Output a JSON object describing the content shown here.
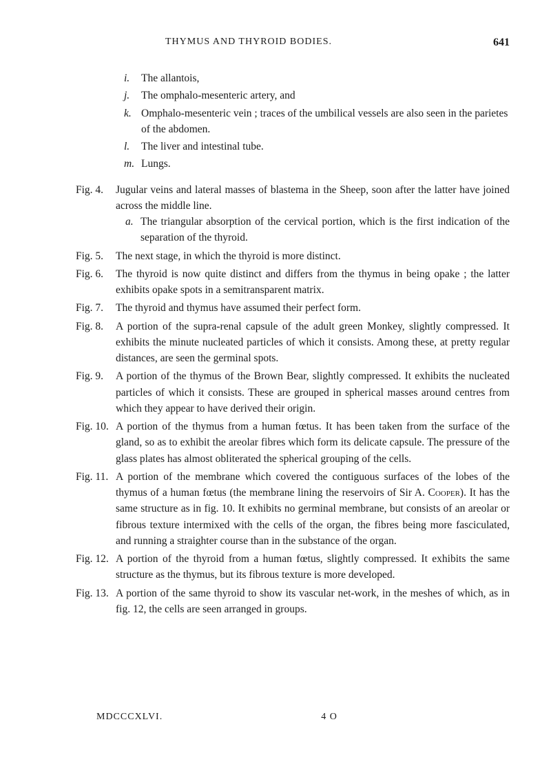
{
  "header": {
    "title": "THYMUS AND THYROID BODIES.",
    "pageNumber": "641"
  },
  "subList": [
    {
      "label": "i.",
      "text": "The allantois,"
    },
    {
      "label": "j.",
      "text": "The omphalo-mesenteric artery, and"
    },
    {
      "label": "k.",
      "text": "Omphalo-mesenteric vein ; traces of the umbilical vessels are also seen in the parietes of the abdomen."
    },
    {
      "label": "l.",
      "text": "The liver and intestinal tube."
    },
    {
      "label": "m.",
      "text": "Lungs."
    }
  ],
  "figs": {
    "fig4": {
      "label": "Fig. 4.",
      "text": "Jugular veins and lateral masses of blastema in the Sheep, soon after the latter have joined across the middle line.",
      "sub": {
        "label": "a.",
        "text": "The triangular absorption of the cervical portion, which is the first indication of the separation of the thyroid."
      }
    },
    "fig5": {
      "label": "Fig. 5.",
      "text": "The next stage, in which the thyroid is more distinct."
    },
    "fig6": {
      "label": "Fig. 6.",
      "text": "The thyroid is now quite distinct and differs from the thymus in being opake ; the latter exhibits opake spots in a semitransparent matrix."
    },
    "fig7": {
      "label": "Fig. 7.",
      "text": "The thyroid and thymus have assumed their perfect form."
    },
    "fig8": {
      "label": "Fig. 8.",
      "text": "A portion of the supra-renal capsule of the adult green Monkey, slightly compressed. It exhibits the minute nucleated particles of which it consists. Among these, at pretty regular distances, are seen the germinal spots."
    },
    "fig9": {
      "label": "Fig. 9.",
      "text": "A portion of the thymus of the Brown Bear, slightly compressed. It exhibits the nucleated particles of which it consists. These are grouped in spherical masses around centres from which they appear to have derived their origin."
    },
    "fig10": {
      "label": "Fig. 10.",
      "text": "A portion of the thymus from a human fœtus. It has been taken from the surface of the gland, so as to exhibit the areolar fibres which form its delicate capsule. The pressure of the glass plates has almost obliterated the spherical grouping of the cells."
    },
    "fig11": {
      "label": "Fig. 11.",
      "textPre": "A portion of the membrane which covered the contiguous surfaces of the lobes of the thymus of a human fœtus (the membrane lining the reservoirs of Sir A. ",
      "cooper": "Cooper",
      "textPost": "). It has the same structure as in fig. 10. It exhibits no germinal membrane, but consists of an areolar or fibrous texture intermixed with the cells of the organ, the fibres being more fasciculated, and running a straighter course than in the substance of the organ."
    },
    "fig12": {
      "label": "Fig. 12.",
      "text": "A portion of the thyroid from a human fœtus, slightly compressed. It exhibits the same structure as the thymus, but its fibrous texture is more developed."
    },
    "fig13": {
      "label": "Fig. 13.",
      "text": "A portion of the same thyroid to show its vascular net-work, in the meshes of which, as in fig. 12, the cells are seen arranged in groups."
    }
  },
  "footer": {
    "left": "MDCCCXLVI.",
    "center": "4 O"
  }
}
